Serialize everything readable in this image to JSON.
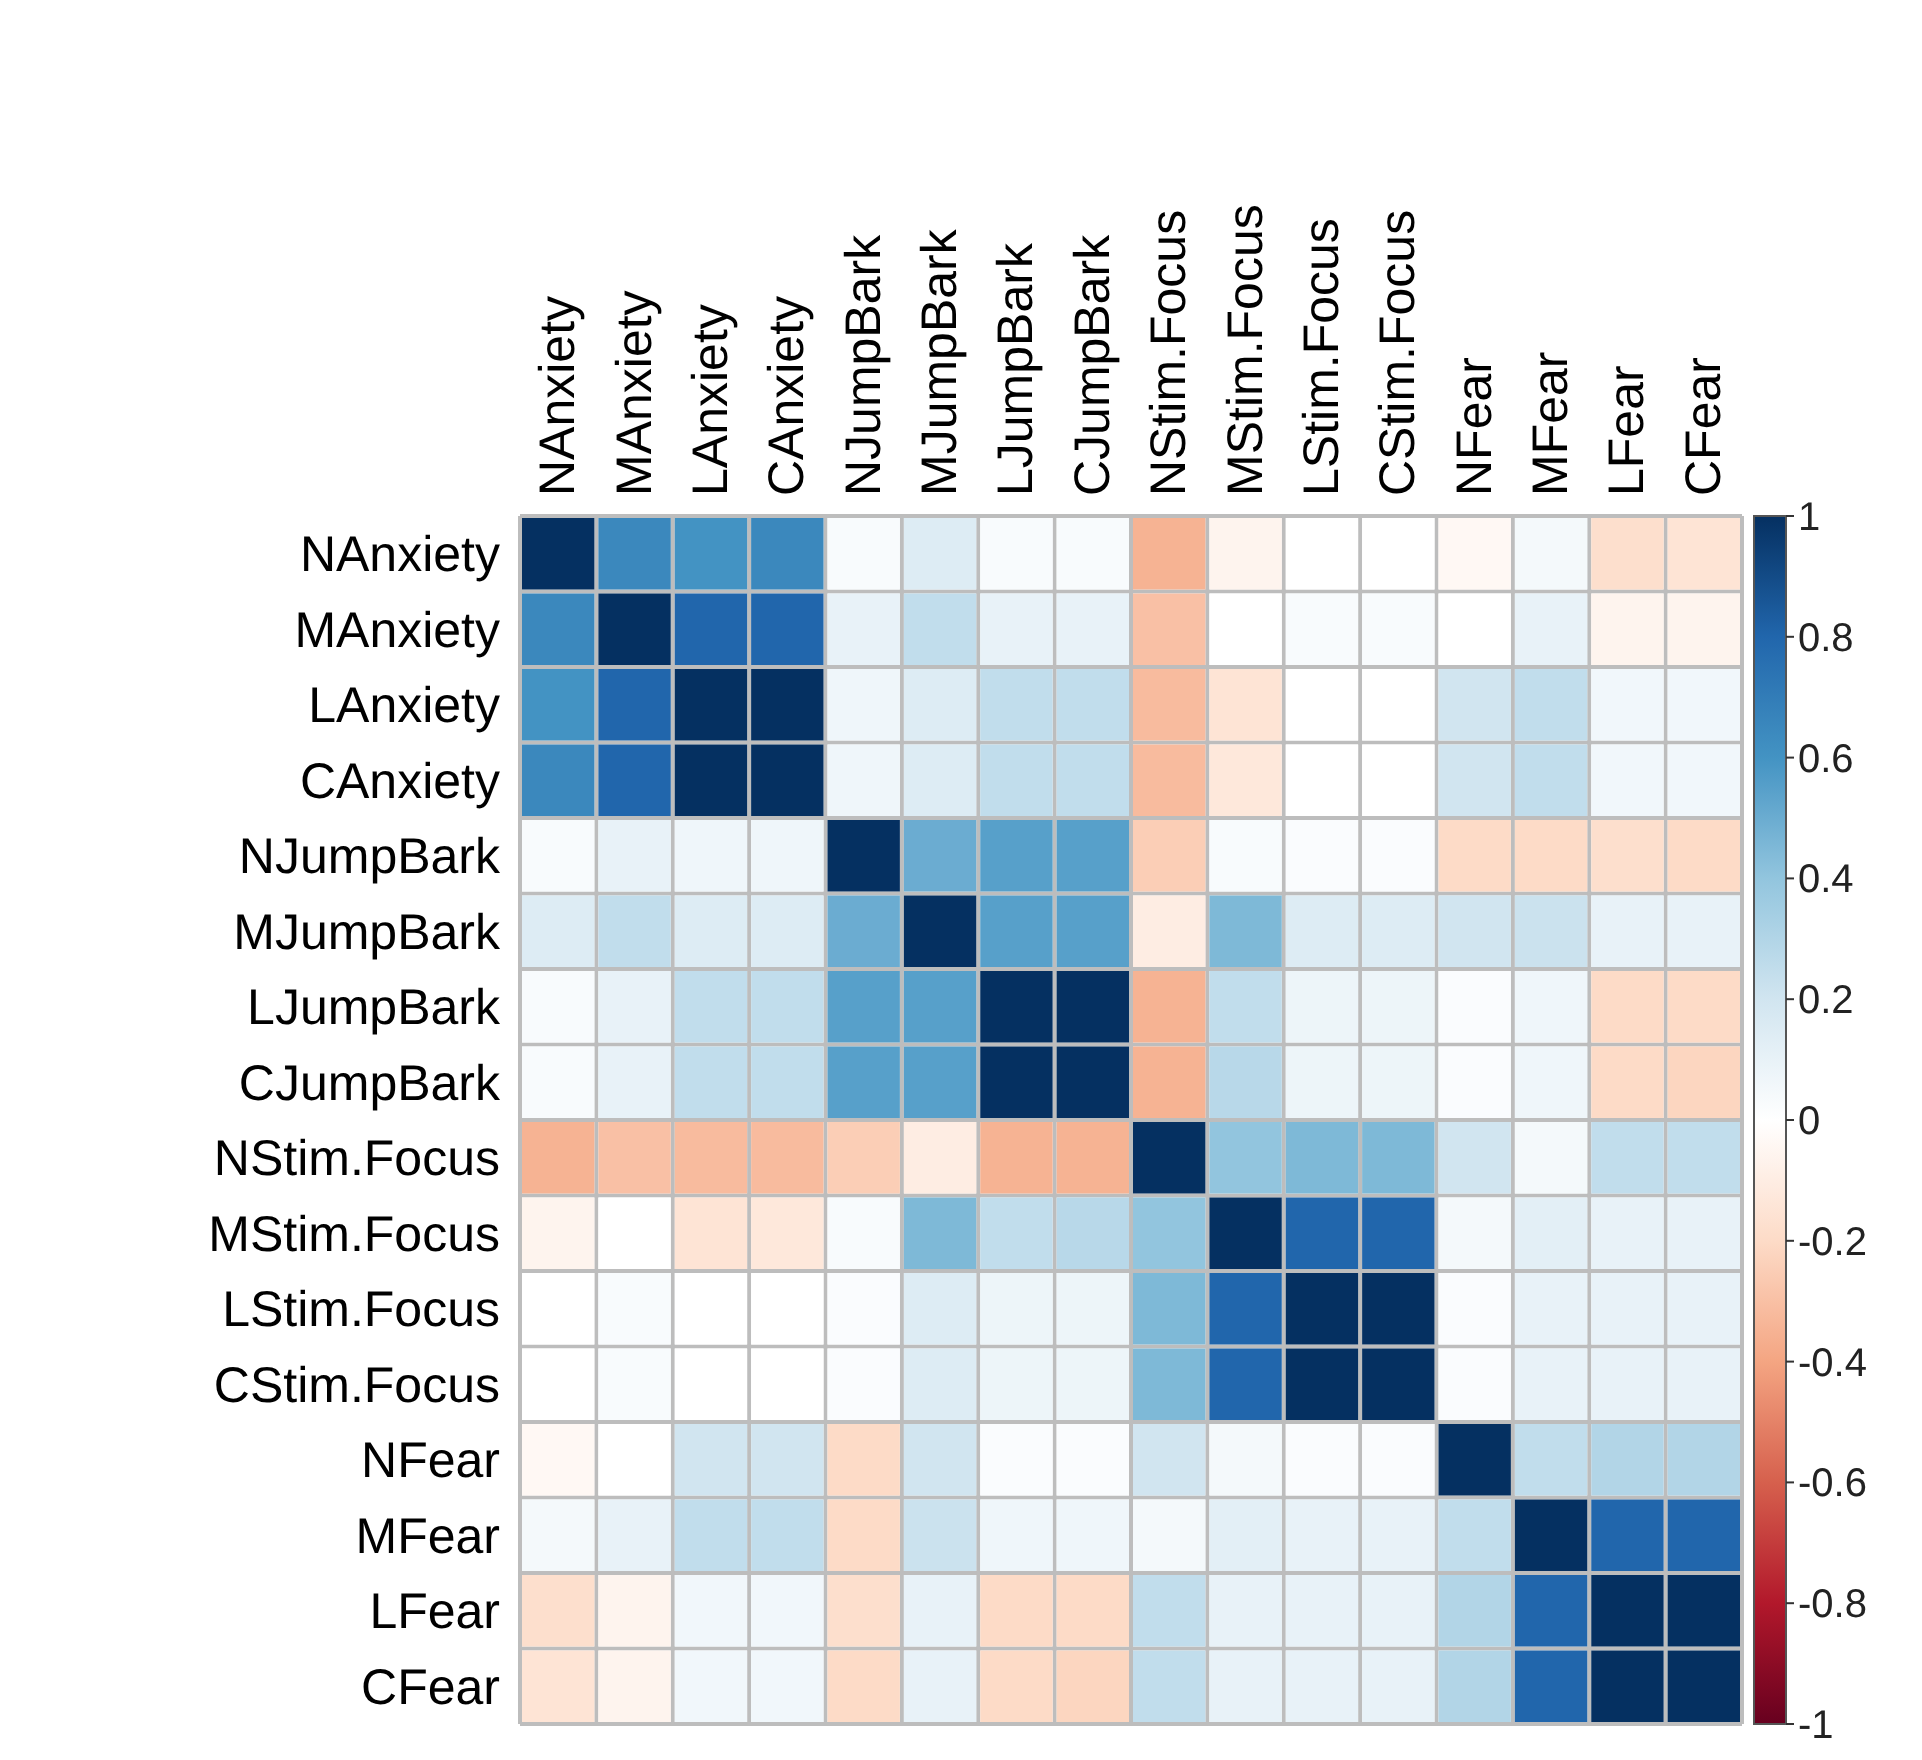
{
  "chart_data": {
    "type": "heatmap",
    "categories": [
      "NAnxiety",
      "MAnxiety",
      "LAnxiety",
      "CAnxiety",
      "NJumpBark",
      "MJumpBark",
      "LJumpBark",
      "CJumpBark",
      "NStim.Focus",
      "MStim.Focus",
      "LStim.Focus",
      "CStim.Focus",
      "NFear",
      "MFear",
      "LFear",
      "CFear"
    ],
    "y_categories": [
      "NAnxiety",
      "MAnxiety",
      "LAnxiety",
      "CAnxiety",
      "NJumpBark",
      "MJumpBark",
      "LJumpBark",
      "CJumpBark",
      "NStim.Focus",
      "MStim.Focus",
      "LStim.Focus",
      "CStim.Focus",
      "NFear",
      "MFear",
      "LFear",
      "CFear"
    ],
    "cells": [
      [
        1,
        0.65,
        0.6,
        0.65,
        0.03,
        0.15,
        0.03,
        0.03,
        -0.35,
        -0.06,
        0,
        0,
        -0.04,
        0.05,
        -0.18,
        -0.15
      ],
      [
        0.65,
        1,
        0.8,
        0.8,
        0.1,
        0.25,
        0.1,
        0.1,
        -0.3,
        0,
        0.03,
        0.03,
        0,
        0.1,
        -0.06,
        -0.06
      ],
      [
        0.6,
        0.8,
        1,
        1,
        0.07,
        0.15,
        0.25,
        0.25,
        -0.32,
        -0.15,
        0,
        0,
        0.2,
        0.25,
        0.06,
        0.06
      ],
      [
        0.65,
        0.8,
        1,
        1,
        0.07,
        0.15,
        0.25,
        0.25,
        -0.32,
        -0.13,
        0,
        0,
        0.2,
        0.25,
        0.06,
        0.06
      ],
      [
        0.03,
        0.1,
        0.07,
        0.07,
        1,
        0.5,
        0.55,
        0.55,
        -0.25,
        0.03,
        0.02,
        0.02,
        -0.2,
        -0.2,
        -0.18,
        -0.2
      ],
      [
        0.15,
        0.25,
        0.15,
        0.15,
        0.5,
        1,
        0.55,
        0.55,
        -0.1,
        0.45,
        0.15,
        0.15,
        0.2,
        0.22,
        0.1,
        0.1
      ],
      [
        0.03,
        0.1,
        0.25,
        0.25,
        0.55,
        0.55,
        1,
        1,
        -0.35,
        0.25,
        0.08,
        0.08,
        0.02,
        0.07,
        -0.2,
        -0.2
      ],
      [
        0.03,
        0.1,
        0.25,
        0.25,
        0.55,
        0.55,
        1,
        1,
        -0.35,
        0.28,
        0.08,
        0.08,
        0.02,
        0.07,
        -0.2,
        -0.22
      ],
      [
        -0.35,
        -0.3,
        -0.32,
        -0.32,
        -0.25,
        -0.1,
        -0.35,
        -0.35,
        1,
        0.4,
        0.45,
        0.45,
        0.2,
        0.05,
        0.25,
        0.25
      ],
      [
        -0.06,
        0,
        -0.15,
        -0.13,
        0.03,
        0.45,
        0.25,
        0.28,
        0.4,
        1,
        0.8,
        0.8,
        0.05,
        0.12,
        0.1,
        0.1
      ],
      [
        0,
        0.03,
        0,
        0,
        0.02,
        0.15,
        0.08,
        0.08,
        0.45,
        0.8,
        1,
        1,
        0.02,
        0.1,
        0.1,
        0.1
      ],
      [
        0,
        0.03,
        0,
        0,
        0.02,
        0.15,
        0.08,
        0.08,
        0.45,
        0.8,
        1,
        1,
        0.02,
        0.1,
        0.1,
        0.1
      ],
      [
        -0.04,
        0,
        0.2,
        0.2,
        -0.2,
        0.2,
        0.02,
        0.02,
        0.2,
        0.05,
        0.02,
        0.02,
        1,
        0.25,
        0.3,
        0.3
      ],
      [
        0.05,
        0.1,
        0.25,
        0.25,
        -0.2,
        0.22,
        0.07,
        0.07,
        0.05,
        0.12,
        0.1,
        0.1,
        0.25,
        1,
        0.8,
        0.8
      ],
      [
        -0.18,
        -0.06,
        0.06,
        0.06,
        -0.18,
        0.1,
        -0.2,
        -0.2,
        0.25,
        0.1,
        0.1,
        0.1,
        0.3,
        0.8,
        1,
        1
      ],
      [
        -0.15,
        -0.06,
        0.06,
        0.06,
        -0.2,
        0.1,
        -0.2,
        -0.22,
        0.25,
        0.1,
        0.1,
        0.1,
        0.3,
        0.8,
        1,
        1
      ]
    ],
    "clim": [
      -1,
      1
    ],
    "cticks": [
      1,
      0.8,
      0.6,
      0.4,
      0.2,
      0,
      -0.2,
      -0.4,
      -0.6,
      -0.8,
      -1
    ]
  }
}
